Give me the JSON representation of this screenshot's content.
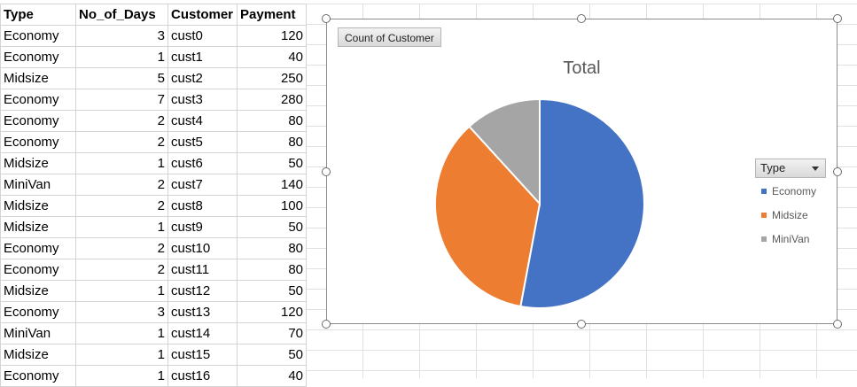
{
  "sheet": {
    "headers": [
      "Type",
      "No_of_Days",
      "Customer",
      "Payment"
    ],
    "rows": [
      [
        "Economy",
        "3",
        "cust0",
        "120"
      ],
      [
        "Economy",
        "1",
        "cust1",
        "40"
      ],
      [
        "Midsize",
        "5",
        "cust2",
        "250"
      ],
      [
        "Economy",
        "7",
        "cust3",
        "280"
      ],
      [
        "Economy",
        "2",
        "cust4",
        "80"
      ],
      [
        "Economy",
        "2",
        "cust5",
        "80"
      ],
      [
        "Midsize",
        "1",
        "cust6",
        "50"
      ],
      [
        "MiniVan",
        "2",
        "cust7",
        "140"
      ],
      [
        "Midsize",
        "2",
        "cust8",
        "100"
      ],
      [
        "Midsize",
        "1",
        "cust9",
        "50"
      ],
      [
        "Economy",
        "2",
        "cust10",
        "80"
      ],
      [
        "Economy",
        "2",
        "cust11",
        "80"
      ],
      [
        "Midsize",
        "1",
        "cust12",
        "50"
      ],
      [
        "Economy",
        "3",
        "cust13",
        "120"
      ],
      [
        "MiniVan",
        "1",
        "cust14",
        "70"
      ],
      [
        "Midsize",
        "1",
        "cust15",
        "50"
      ],
      [
        "Economy",
        "1",
        "cust16",
        "40"
      ]
    ]
  },
  "chart": {
    "field_button": "Count of Customer",
    "legend_field_button": "Type",
    "dropdown_icon": "chevron-down-icon"
  },
  "chart_data": {
    "type": "pie",
    "title": "Total",
    "categories": [
      "Economy",
      "Midsize",
      "MiniVan"
    ],
    "values": [
      9,
      6,
      2
    ],
    "colors": [
      "#4472c4",
      "#ed7d31",
      "#a5a5a5"
    ],
    "legend_position": "right"
  }
}
